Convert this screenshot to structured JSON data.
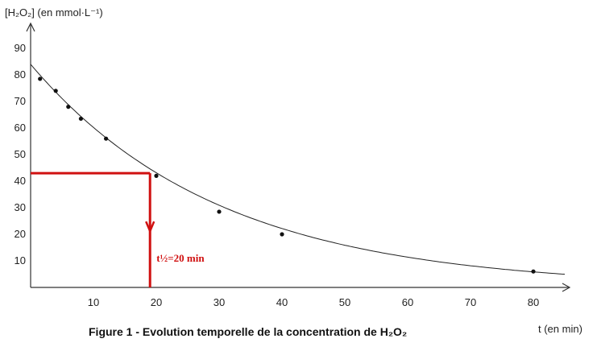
{
  "chart_data": {
    "type": "scatter",
    "caption": "Figure 1 - Evolution temporelle de la concentration de H₂O₂",
    "ylabel": "[H₂O₂] (en mmol·L⁻¹)",
    "xlabel": "t (en min)",
    "xlim": [
      0,
      85
    ],
    "ylim": [
      0,
      95
    ],
    "x_ticks": [
      10,
      20,
      30,
      40,
      50,
      60,
      70,
      80
    ],
    "y_ticks": [
      10,
      20,
      30,
      40,
      50,
      60,
      70,
      80,
      90
    ],
    "series": [
      {
        "points": [
          {
            "x": 1.5,
            "y": 78.5
          },
          {
            "x": 4,
            "y": 74
          },
          {
            "x": 6,
            "y": 68
          },
          {
            "x": 8,
            "y": 63.5
          },
          {
            "x": 12,
            "y": 56
          },
          {
            "x": 20,
            "y": 42
          },
          {
            "x": 30,
            "y": 28.5
          },
          {
            "x": 40,
            "y": 20
          },
          {
            "x": 80,
            "y": 6
          }
        ]
      }
    ],
    "fit_curve": {
      "c0": 84,
      "k": 0.0333
    },
    "annotation": {
      "text": "t½=20 min",
      "x": 19,
      "y": 43,
      "color": "#d01010"
    },
    "grid": false
  }
}
